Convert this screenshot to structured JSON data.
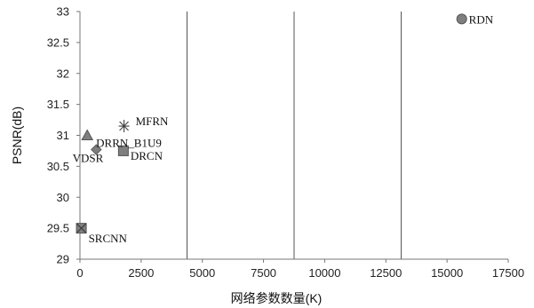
{
  "chart_data": {
    "type": "scatter",
    "title": "",
    "xlabel": "网络参数数量(K)",
    "ylabel": "PSNR(dB)",
    "xlim": [
      0,
      17500
    ],
    "ylim": [
      29,
      33
    ],
    "x_ticks": [
      0,
      2500,
      5000,
      7500,
      10000,
      12500,
      15000,
      17500
    ],
    "y_ticks": [
      29,
      29.5,
      30,
      30.5,
      31,
      31.5,
      32,
      32.5,
      33
    ],
    "vertical_grid_x": [
      4375,
      8750,
      13125
    ],
    "legend": "none",
    "points": [
      {
        "label": "SRCNN",
        "x": 57,
        "y": 29.5,
        "marker": "square-x",
        "color": "#7f7f7f"
      },
      {
        "label": "VDSR",
        "x": 665,
        "y": 30.77,
        "marker": "diamond",
        "color": "#7f7f7f"
      },
      {
        "label": "DRRN_B1U9",
        "x": 297,
        "y": 31.0,
        "marker": "triangle",
        "color": "#7f7f7f"
      },
      {
        "label": "DRCN",
        "x": 1774,
        "y": 30.75,
        "marker": "square",
        "color": "#7f7f7f"
      },
      {
        "label": "MFRN",
        "x": 1800,
        "y": 31.15,
        "marker": "asterisk",
        "color": "#444444"
      },
      {
        "label": "RDN",
        "x": 15600,
        "y": 32.88,
        "marker": "circle",
        "color": "#7f7f7f"
      }
    ]
  }
}
